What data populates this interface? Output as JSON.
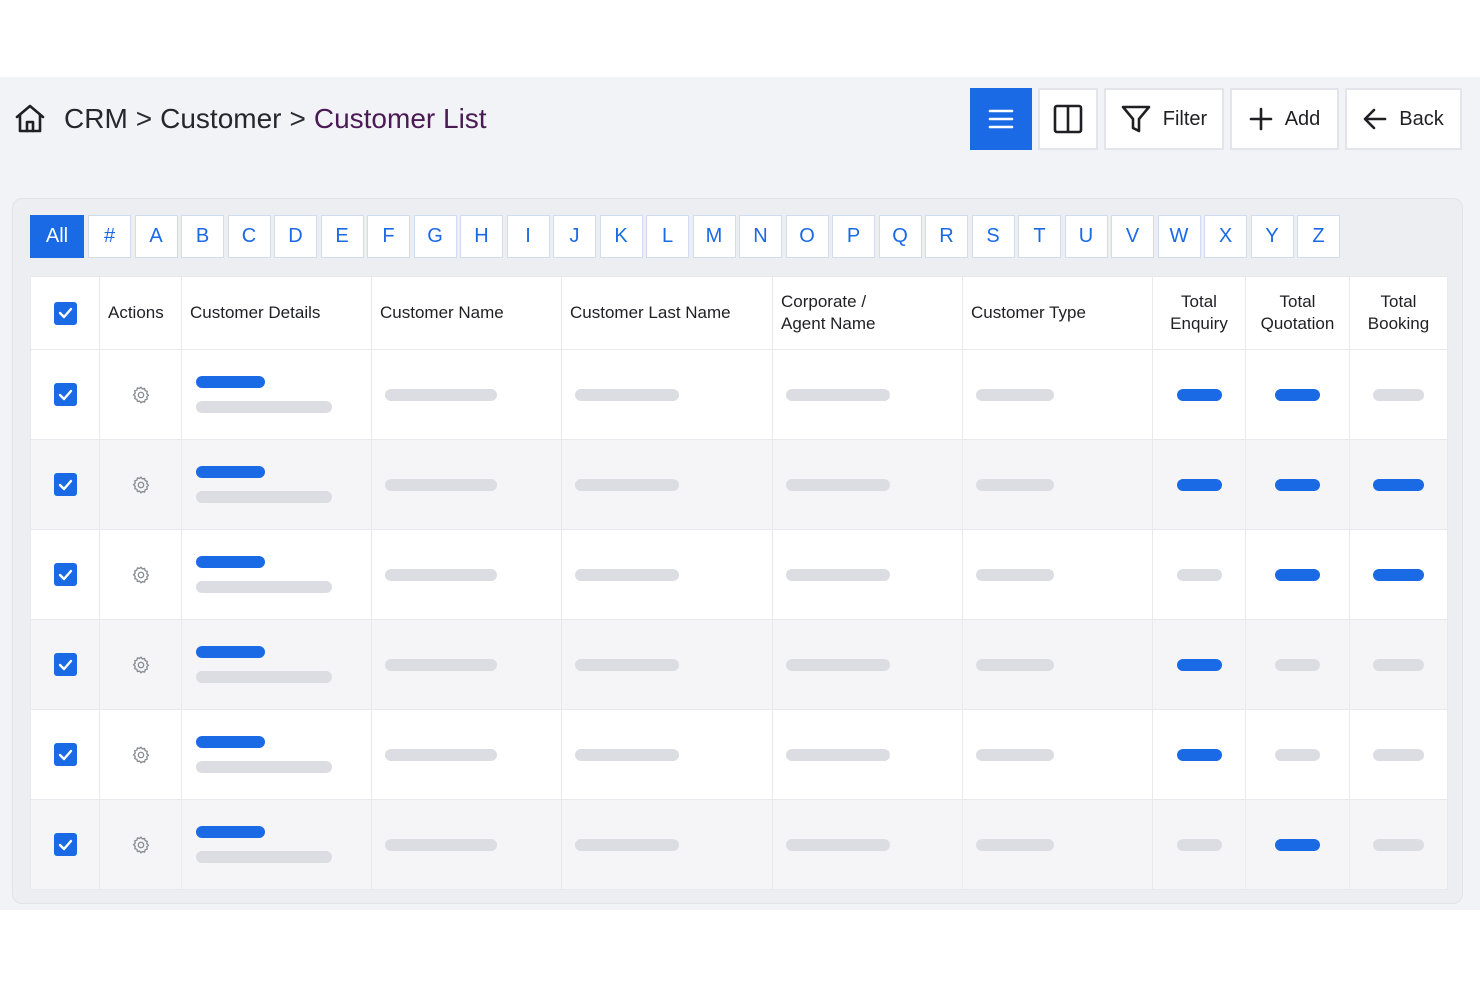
{
  "breadcrumb": {
    "home_icon": "home-icon",
    "level1": "CRM",
    "sep1": ">",
    "level2": "Customer",
    "sep2": ">",
    "current": "Customer List"
  },
  "toolbar": {
    "list_icon": "list-view-icon",
    "columns_icon": "columns-view-icon",
    "filter_label": "Filter",
    "add_label": "Add",
    "back_label": "Back"
  },
  "alphabet": {
    "all_label": "All",
    "keys": [
      "#",
      "A",
      "B",
      "C",
      "D",
      "E",
      "F",
      "G",
      "H",
      "I",
      "J",
      "K",
      "L",
      "M",
      "N",
      "O",
      "P",
      "Q",
      "R",
      "S",
      "T",
      "U",
      "V",
      "W",
      "X",
      "Y",
      "Z"
    ]
  },
  "table": {
    "headers": {
      "actions": "Actions",
      "customer_details": "Customer Details",
      "customer_name": "Customer Name",
      "customer_last_name": "Customer Last Name",
      "corporate_line1": "Corporate /",
      "corporate_line2": "Agent Name",
      "customer_type": "Customer Type",
      "enquiry_line1": "Total",
      "enquiry_line2": "Enquiry",
      "quotation_line1": "Total",
      "quotation_line2": "Quotation",
      "booking_line1": "Total",
      "booking_line2": "Booking"
    },
    "rows": [
      {
        "checked": true,
        "enquiry": "blue",
        "quotation": "blue",
        "booking": "gray"
      },
      {
        "checked": true,
        "enquiry": "blue",
        "quotation": "blue",
        "booking": "blue"
      },
      {
        "checked": true,
        "enquiry": "gray",
        "quotation": "blue",
        "booking": "blue"
      },
      {
        "checked": true,
        "enquiry": "blue",
        "quotation": "gray",
        "booking": "gray"
      },
      {
        "checked": true,
        "enquiry": "blue",
        "quotation": "gray",
        "booking": "gray"
      },
      {
        "checked": true,
        "enquiry": "gray",
        "quotation": "blue",
        "booking": "gray"
      }
    ]
  },
  "colors": {
    "accent": "#1a6ae6",
    "breadcrumb_current": "#4a1a55",
    "placeholder_gray": "#dcdde2"
  }
}
